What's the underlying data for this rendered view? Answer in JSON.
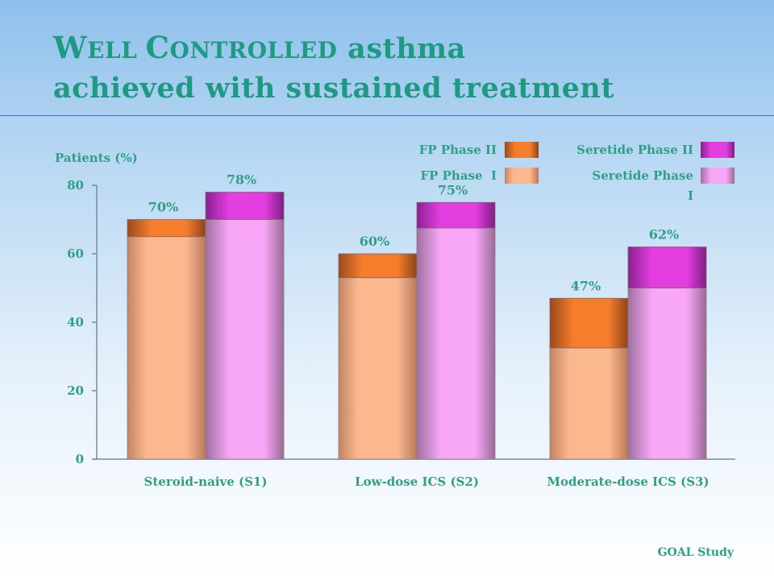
{
  "title": {
    "line1_w": "W",
    "line1_ell": "ELL ",
    "line1_c": "C",
    "line1_ontrolled": "ONTROLLED",
    "line1_rest": " asthma",
    "line2": "achieved with sustained treatment"
  },
  "footer": "GOAL Study",
  "colors": {
    "fp_phase_i": "#fbb88e",
    "fp_phase_ii": "#f57d2c",
    "seretide_phase_i": "#f7a7f5",
    "seretide_phase_ii": "#e33ee0",
    "text": "#2f9f86"
  },
  "chart_data": {
    "type": "bar",
    "stacked": true,
    "ylabel": "Patients (%)",
    "ylim": [
      0,
      80
    ],
    "yticks": [
      0,
      20,
      40,
      60,
      80
    ],
    "categories": [
      "Steroid-naive (S1)",
      "Low-dose ICS (S2)",
      "Moderate-dose ICS (S3)"
    ],
    "legend": {
      "fp_phase_ii": "FP Phase II",
      "fp_phase_i": "FP Phase  I",
      "seretide_phase_ii": "Seretide Phase II",
      "seretide_phase_i_line1": "Seretide Phase",
      "seretide_phase_i_line2": "I"
    },
    "groups": [
      {
        "fp": {
          "phase_i": 65,
          "phase_ii_total": 70,
          "label": "70%"
        },
        "seretide": {
          "phase_i": 70,
          "phase_ii_total": 78,
          "label": "78%"
        }
      },
      {
        "fp": {
          "phase_i": 53,
          "phase_ii_total": 60,
          "label": "60%"
        },
        "seretide": {
          "phase_i": 67.5,
          "phase_ii_total": 75,
          "label": "75%"
        }
      },
      {
        "fp": {
          "phase_i": 32.5,
          "phase_ii_total": 47,
          "label": "47%"
        },
        "seretide": {
          "phase_i": 50,
          "phase_ii_total": 62,
          "label": "62%"
        }
      }
    ]
  }
}
